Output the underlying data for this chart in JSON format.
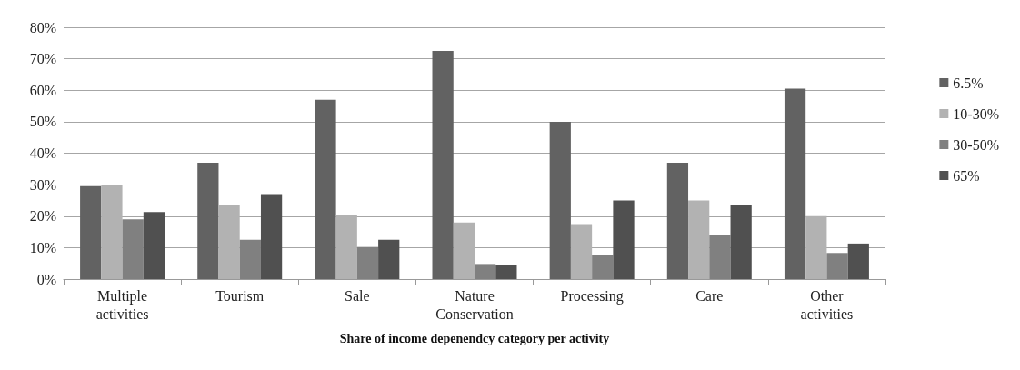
{
  "chart_data": {
    "type": "bar",
    "xlabel": "Share of income depenendcy category per activity",
    "categories": [
      "Multiple activities",
      "Tourism",
      "Sale",
      "Nature Conservation",
      "Processing",
      "Care",
      "Other activities"
    ],
    "series": [
      {
        "name": "6.5%",
        "color": "#626262",
        "values": [
          29.5,
          37,
          57,
          72.5,
          50,
          37,
          60.5
        ]
      },
      {
        "name": "10-30%",
        "color": "#b2b2b2",
        "values": [
          30,
          23.5,
          20.5,
          18,
          17.5,
          25,
          20
        ]
      },
      {
        "name": "30-50%",
        "color": "#808080",
        "values": [
          19,
          12.5,
          10.2,
          4.8,
          7.8,
          14,
          8.3
        ]
      },
      {
        "name": "65%",
        "color": "#505050",
        "values": [
          21.3,
          27,
          12.5,
          4.5,
          25,
          23.5,
          11.3
        ]
      }
    ],
    "ylim": [
      0,
      80
    ],
    "yticks": [
      {
        "value": 0,
        "label": "0%"
      },
      {
        "value": 10,
        "label": "10%"
      },
      {
        "value": 20,
        "label": "20%"
      },
      {
        "value": 30,
        "label": "30%"
      },
      {
        "value": 40,
        "label": "40%"
      },
      {
        "value": 50,
        "label": "50%"
      },
      {
        "value": 60,
        "label": "60%"
      },
      {
        "value": 70,
        "label": "70%"
      },
      {
        "value": 80,
        "label": "80%"
      }
    ],
    "grid": "y",
    "legend": "right"
  }
}
